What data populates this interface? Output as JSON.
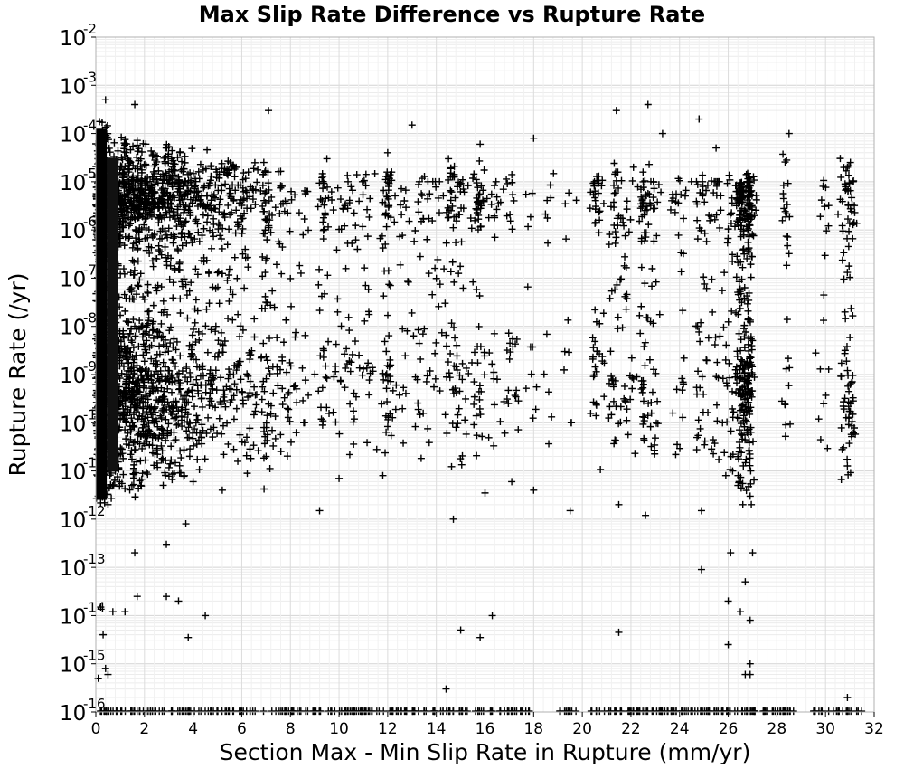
{
  "chart_data": {
    "type": "scatter",
    "title": "Max Slip Rate Difference vs Rupture Rate",
    "xlabel": "Section Max - Min Slip Rate in Rupture (mm/yr)",
    "ylabel": "Rupture Rate (/yr)",
    "xlim": [
      0,
      32
    ],
    "ylim": [
      1e-16,
      0.01
    ],
    "yscale": "log",
    "x_ticks": [
      0,
      2,
      4,
      6,
      8,
      10,
      12,
      14,
      16,
      18,
      20,
      22,
      24,
      26,
      28,
      30,
      32
    ],
    "y_ticks": [
      {
        "base": "10",
        "exp": "-16"
      },
      {
        "base": "10",
        "exp": "-15"
      },
      {
        "base": "10",
        "exp": "-14"
      },
      {
        "base": "10",
        "exp": "-13"
      },
      {
        "base": "10",
        "exp": "-12"
      },
      {
        "base": "10",
        "exp": "-11"
      },
      {
        "base": "10",
        "exp": "-10"
      },
      {
        "base": "10",
        "exp": "-9"
      },
      {
        "base": "10",
        "exp": "-8"
      },
      {
        "base": "10",
        "exp": "-7"
      },
      {
        "base": "10",
        "exp": "-6"
      },
      {
        "base": "10",
        "exp": "-5"
      },
      {
        "base": "10",
        "exp": "-4"
      },
      {
        "base": "10",
        "exp": "-3"
      },
      {
        "base": "10",
        "exp": "-2"
      }
    ],
    "grid": true,
    "marker": "+",
    "marker_color": "#000000",
    "point_count_approx": 11000,
    "points": [
      [
        0.4,
        0.0005
      ],
      [
        1.6,
        0.0004
      ],
      [
        7.1,
        0.0003
      ],
      [
        13.0,
        0.00015
      ],
      [
        21.4,
        0.0003
      ],
      [
        22.7,
        0.0004
      ],
      [
        24.8,
        0.0002
      ],
      [
        28.5,
        0.0001
      ],
      [
        15.8,
        6e-05
      ],
      [
        9.5,
        3e-05
      ],
      [
        12.0,
        4e-05
      ],
      [
        14.5,
        3e-05
      ],
      [
        30.9,
        2e-05
      ],
      [
        26.8,
        1e-05
      ],
      [
        18.0,
        8e-05
      ],
      [
        20.5,
        1e-05
      ],
      [
        23.3,
        0.0001
      ],
      [
        25.5,
        5e-05
      ],
      [
        1.6,
        2e-13
      ],
      [
        2.9,
        3e-13
      ],
      [
        3.7,
        8e-13
      ],
      [
        1.7,
        2.5e-14
      ],
      [
        2.9,
        2.5e-14
      ],
      [
        3.4,
        2e-14
      ],
      [
        0.2,
        1.5e-14
      ],
      [
        0.7,
        1.2e-14
      ],
      [
        1.2,
        1.2e-14
      ],
      [
        4.5,
        1e-14
      ],
      [
        3.8,
        3.5e-15
      ],
      [
        0.4,
        8e-16
      ],
      [
        0.5,
        6e-16
      ],
      [
        0.1,
        5e-16
      ],
      [
        0.3,
        4e-15
      ],
      [
        14.4,
        3e-16
      ],
      [
        15.0,
        5e-15
      ],
      [
        15.8,
        3.5e-15
      ],
      [
        16.3,
        1e-14
      ],
      [
        21.5,
        4.5e-15
      ],
      [
        9.2,
        1.5e-12
      ],
      [
        14.7,
        1e-12
      ],
      [
        16.0,
        3.5e-12
      ],
      [
        21.5,
        2e-12
      ],
      [
        22.6,
        1.2e-12
      ],
      [
        26.1,
        2e-13
      ],
      [
        26.7,
        5e-14
      ],
      [
        27.0,
        2e-13
      ],
      [
        26.0,
        2e-14
      ],
      [
        26.5,
        1.2e-14
      ],
      [
        26.9,
        8e-15
      ],
      [
        26.0,
        2.5e-15
      ],
      [
        26.9,
        1e-15
      ],
      [
        26.9,
        6e-16
      ],
      [
        26.7,
        6e-16
      ],
      [
        30.9,
        2e-16
      ],
      [
        24.9,
        9e-14
      ],
      [
        24.9,
        1.5e-12
      ],
      [
        26.6,
        2e-12
      ],
      [
        26.9,
        3e-12
      ],
      [
        26.4,
        5e-12
      ],
      [
        25.9,
        8e-12
      ],
      [
        17.1,
        6e-12
      ],
      [
        18.0,
        4e-12
      ],
      [
        19.5,
        1.5e-12
      ],
      [
        11.8,
        8e-12
      ],
      [
        10.0,
        7e-12
      ],
      [
        7.0,
        2e-11
      ],
      [
        5.2,
        4e-12
      ],
      [
        4.0,
        6e-12
      ],
      [
        0.2,
        4e-12
      ],
      [
        0.5,
        2e-12
      ],
      [
        0.1,
        3e-12
      ]
    ]
  }
}
